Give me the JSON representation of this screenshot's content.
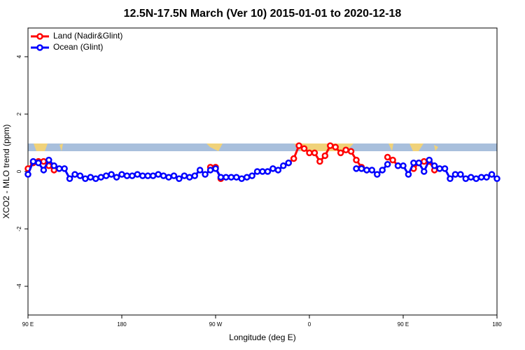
{
  "chart_data": {
    "type": "line",
    "title": "12.5N-17.5N March (Ver 10)   2015-01-01 to 2020-12-18",
    "xlabel": "Longitude (deg E)",
    "ylabel": "XCO2 - MLO trend (ppm)",
    "x": [
      90,
      95,
      100,
      105,
      110,
      115,
      120,
      125,
      130,
      135,
      140,
      145,
      150,
      155,
      160,
      165,
      170,
      175,
      180,
      185,
      190,
      195,
      200,
      205,
      210,
      215,
      220,
      225,
      230,
      235,
      240,
      245,
      250,
      255,
      260,
      265,
      270,
      275,
      280,
      285,
      290,
      295,
      300,
      305,
      310,
      315,
      320,
      325,
      330,
      335,
      340,
      345,
      350,
      355,
      360,
      365,
      370,
      375,
      380,
      385,
      390,
      395,
      400,
      405,
      410,
      415,
      420,
      425,
      430,
      435,
      440,
      445,
      450,
      455,
      460,
      465,
      470,
      475,
      480,
      485,
      490,
      495,
      500,
      505,
      510,
      515,
      520,
      525,
      530,
      535,
      540
    ],
    "series": [
      {
        "name": "Land (Nadir&Glint)",
        "color": "#ff0000",
        "values": [
          0.1,
          0.3,
          0.35,
          0.35,
          0.2,
          0.05,
          null,
          null,
          null,
          null,
          null,
          null,
          null,
          null,
          null,
          null,
          null,
          null,
          null,
          null,
          null,
          null,
          null,
          null,
          null,
          null,
          null,
          null,
          null,
          null,
          null,
          null,
          null,
          null,
          null,
          0.15,
          0.15,
          -0.25,
          null,
          null,
          null,
          null,
          null,
          null,
          null,
          null,
          null,
          null,
          null,
          null,
          0.3,
          0.45,
          0.9,
          0.8,
          0.65,
          0.65,
          0.35,
          0.55,
          0.9,
          0.85,
          0.65,
          0.75,
          0.7,
          0.4,
          0.15,
          0.05,
          null,
          null,
          null,
          0.5,
          0.4,
          0.2,
          null,
          null,
          0.1,
          0.3,
          0.35,
          0.35,
          0.05,
          null,
          null,
          null,
          null,
          null,
          null,
          null,
          null,
          null,
          null,
          null,
          null
        ]
      },
      {
        "name": "Ocean (Glint)",
        "color": "#0000ff",
        "values": [
          -0.1,
          0.35,
          0.3,
          0.05,
          0.4,
          0.2,
          0.1,
          0.1,
          -0.25,
          -0.1,
          -0.15,
          -0.25,
          -0.2,
          -0.25,
          -0.2,
          -0.15,
          -0.1,
          -0.2,
          -0.1,
          -0.15,
          -0.15,
          -0.1,
          -0.15,
          -0.15,
          -0.15,
          -0.1,
          -0.15,
          -0.2,
          -0.15,
          -0.25,
          -0.15,
          -0.2,
          -0.15,
          0.05,
          -0.1,
          0.05,
          0.1,
          -0.2,
          -0.2,
          -0.2,
          -0.2,
          -0.25,
          -0.2,
          -0.15,
          0.0,
          0.0,
          0.0,
          0.1,
          0.05,
          0.2,
          0.3,
          null,
          null,
          null,
          null,
          null,
          null,
          null,
          null,
          null,
          null,
          null,
          null,
          0.1,
          0.1,
          0.05,
          0.05,
          -0.1,
          0.05,
          0.25,
          null,
          0.2,
          0.2,
          -0.1,
          0.3,
          0.3,
          0.0,
          0.4,
          0.2,
          0.1,
          0.1,
          -0.25,
          -0.1,
          -0.1,
          -0.25,
          -0.2,
          -0.25,
          -0.2,
          -0.2,
          -0.1,
          -0.25
        ]
      }
    ],
    "xlim": [
      90,
      540
    ],
    "xticks": [
      {
        "value": 90,
        "label": "90 E"
      },
      180,
      {
        "value": 270,
        "label": "90 W"
      },
      {
        "value": 360,
        "label": "0"
      },
      {
        "value": 450,
        "label": "90 E"
      },
      {
        "value": 540,
        "label": "180"
      }
    ],
    "ylim": [
      -5,
      5
    ],
    "yticks": [
      -4,
      -2,
      0,
      2,
      4
    ],
    "legend": "top-left"
  }
}
